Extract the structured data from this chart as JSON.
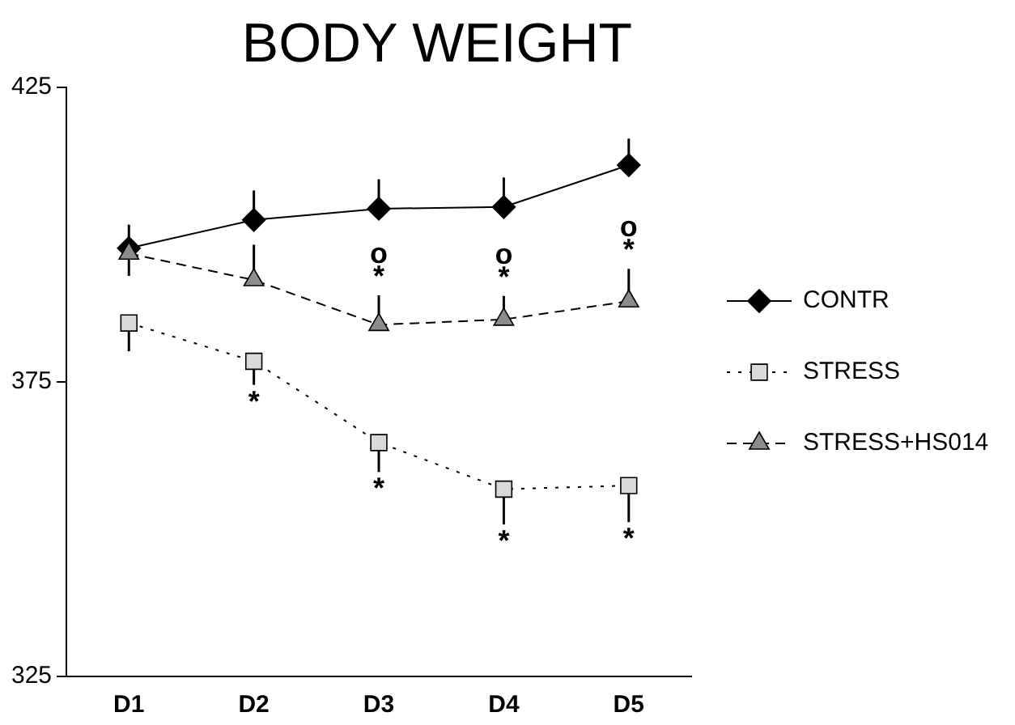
{
  "chart_data": {
    "type": "line",
    "title": "BODY WEIGHT",
    "categories": [
      "D1",
      "D2",
      "D3",
      "D4",
      "D5"
    ],
    "series": [
      {
        "name": "CONTR",
        "color": "#000000",
        "marker": "diamond",
        "line_style": "solid",
        "values": [
          397.7,
          402.5,
          404.4,
          404.7,
          411.8
        ],
        "errors": [
          [
            397.7,
            401.7
          ],
          [
            402.5,
            407.5
          ],
          [
            404.4,
            409.4
          ],
          [
            404.7,
            409.7
          ],
          [
            411.8,
            416.3
          ]
        ]
      },
      {
        "name": "STRESS",
        "color": "#d9d9d9",
        "marker": "square",
        "line_style": "dotted",
        "values": [
          385,
          378.5,
          364.7,
          356.8,
          357.4
        ],
        "errors": [
          [
            380.2,
            385
          ],
          [
            374.5,
            378.5
          ],
          [
            359.7,
            364.7
          ],
          [
            350.8,
            356.8
          ],
          [
            351.2,
            357.4
          ]
        ]
      },
      {
        "name": "STRESS+HS014",
        "color": "#8c8c8c",
        "marker": "triangle",
        "line_style": "dashed",
        "values": [
          396.8,
          392.3,
          384.7,
          385.6,
          388.7
        ],
        "errors": [
          [
            393,
            396.8
          ],
          [
            392.3,
            398.3
          ],
          [
            384.7,
            389.7
          ],
          [
            385.6,
            389.6
          ],
          [
            388.7,
            394.2
          ]
        ]
      }
    ],
    "annotations": [
      {
        "text": "*",
        "x": "D2",
        "y": 378.5
      },
      {
        "text": "*",
        "x": "D3",
        "y": 364.7
      },
      {
        "text": "*",
        "x": "D4",
        "y": 356.8
      },
      {
        "text": "*",
        "x": "D5",
        "y": 357.4
      },
      {
        "text": "*",
        "x": "D3",
        "y": 384.7
      },
      {
        "text": "*",
        "x": "D4",
        "y": 385.6
      },
      {
        "text": "*",
        "x": "D5",
        "y": 388.7
      },
      {
        "text": "o",
        "x": "D3",
        "y": 384.7
      },
      {
        "text": "o",
        "x": "D4",
        "y": 385.6
      },
      {
        "text": "o",
        "x": "D5",
        "y": 388.7
      }
    ],
    "ylim": [
      325,
      425
    ],
    "yticks": [
      325,
      375,
      425
    ],
    "grid": false,
    "legend": "right"
  }
}
